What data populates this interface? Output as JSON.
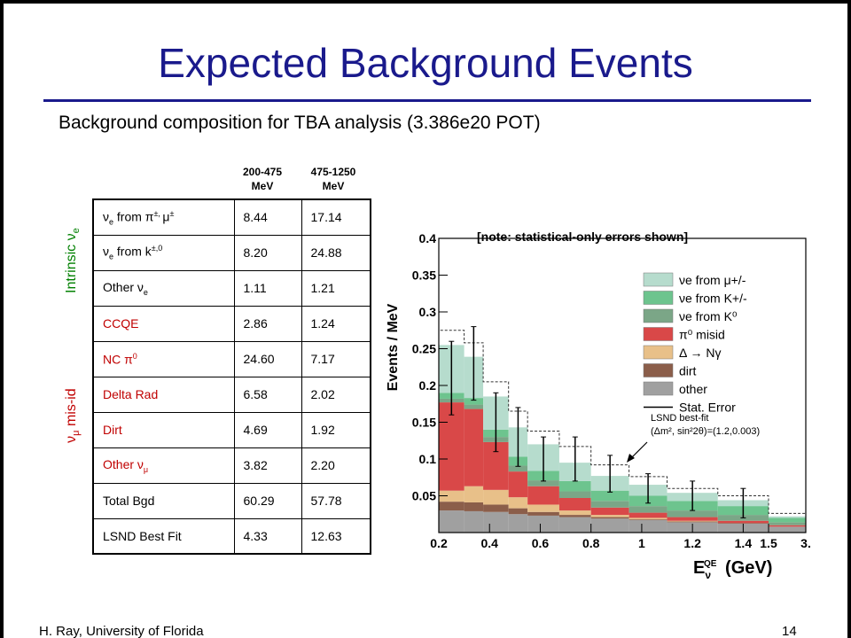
{
  "slide": {
    "title": "Expected Background Events",
    "subtitle": "Background composition for TBA analysis (3.386e20 POT)",
    "footer_left": "H. Ray, University of Florida",
    "page_number": "14"
  },
  "table": {
    "col_headers": [
      "200-475\nMeV",
      "475-1250\nMeV"
    ],
    "group_labels": {
      "intrinsic": "Intrinsic ν",
      "intrinsic_sub": "e",
      "misid": "ν",
      "misid_sub": "μ",
      "misid_rest": " mis-id"
    },
    "rows": [
      {
        "label": "ν",
        "sub": "e",
        "rest": " from π",
        "sup": "±, ",
        "rest2": "μ",
        "sup2": "±",
        "v1": "8.44",
        "v2": "17.14",
        "group": "intrinsic"
      },
      {
        "label": "ν",
        "sub": "e",
        "rest": " from k",
        "sup": "±,0",
        "v1": "8.20",
        "v2": "24.88",
        "group": "intrinsic"
      },
      {
        "label": "Other ν",
        "sub": "e",
        "v1": "1.11",
        "v2": "1.21",
        "group": "intrinsic"
      },
      {
        "label": "CCQE",
        "v1": "2.86",
        "v2": "1.24",
        "group": "misid"
      },
      {
        "label": "NC π",
        "sup": "0",
        "v1": "24.60",
        "v2": "7.17",
        "group": "misid"
      },
      {
        "label": "Delta Rad",
        "v1": "6.58",
        "v2": "2.02",
        "group": "misid"
      },
      {
        "label": "Dirt",
        "v1": "4.69",
        "v2": "1.92",
        "group": "misid"
      },
      {
        "label": "Other ν",
        "sub": "μ",
        "v1": "3.82",
        "v2": "2.20",
        "group": "misid"
      },
      {
        "label": "Total Bgd",
        "v1": "60.29",
        "v2": "57.78",
        "group": "total"
      },
      {
        "label": "LSND Best Fit",
        "v1": "4.33",
        "v2": "12.63",
        "group": "total"
      }
    ]
  },
  "colors": {
    "title": "#1a1a8c",
    "intrinsic": "#008000",
    "misid": "#c00000"
  },
  "note": "[note: statistical-only errors shown]",
  "chart_data": {
    "type": "bar",
    "stacked": true,
    "ylabel": "Events / MeV",
    "xlabel": "E_ν^QE (GeV)",
    "xlim": [
      0.2,
      3.0
    ],
    "ylim": [
      0,
      0.4
    ],
    "x_ticks": [
      "0.2",
      "0.4",
      "0.6",
      "0.8",
      "1",
      "1.2",
      "1.4",
      "1.5",
      "3."
    ],
    "y_ticks": [
      "0.05",
      "0.1",
      "0.15",
      "0.2",
      "0.25",
      "0.3",
      "0.35",
      "0.4"
    ],
    "bin_edges": [
      0.2,
      0.3,
      0.375,
      0.475,
      0.55,
      0.675,
      0.8,
      0.95,
      1.1,
      1.3,
      1.5,
      3.0
    ],
    "series": [
      {
        "name": "other",
        "color": "#a0a0a0",
        "values": [
          0.03,
          0.029,
          0.028,
          0.025,
          0.023,
          0.021,
          0.019,
          0.017,
          0.014,
          0.012,
          0.008
        ]
      },
      {
        "name": "dirt",
        "color": "#8b5e4a",
        "values": [
          0.012,
          0.012,
          0.01,
          0.008,
          0.005,
          0.003,
          0.002,
          0.001,
          0.001,
          0.001,
          0.0
        ]
      },
      {
        "name": "Δ → Nγ",
        "color": "#e8c089",
        "values": [
          0.015,
          0.022,
          0.02,
          0.015,
          0.01,
          0.006,
          0.003,
          0.002,
          0.001,
          0.0,
          0.0
        ]
      },
      {
        "name": "π⁰ misid",
        "color": "#d94848",
        "values": [
          0.12,
          0.105,
          0.065,
          0.035,
          0.025,
          0.017,
          0.01,
          0.007,
          0.005,
          0.003,
          0.002
        ]
      },
      {
        "name": "νe from K⁰",
        "color": "#7ba687",
        "values": [
          0.005,
          0.006,
          0.007,
          0.008,
          0.008,
          0.009,
          0.009,
          0.009,
          0.009,
          0.008,
          0.004
        ]
      },
      {
        "name": "νe from K+/-",
        "color": "#6dc48e",
        "values": [
          0.008,
          0.009,
          0.01,
          0.012,
          0.013,
          0.014,
          0.014,
          0.014,
          0.013,
          0.012,
          0.006
        ]
      },
      {
        "name": "νe from μ+/-",
        "color": "#b6dccd",
        "values": [
          0.065,
          0.056,
          0.045,
          0.04,
          0.036,
          0.025,
          0.02,
          0.015,
          0.011,
          0.008,
          0.002
        ]
      }
    ],
    "total_with_signal": [
      0.275,
      0.258,
      0.205,
      0.165,
      0.138,
      0.117,
      0.092,
      0.076,
      0.06,
      0.05,
      0.026
    ],
    "data_points": {
      "x": [
        0.25,
        0.3375,
        0.425,
        0.5125,
        0.6125,
        0.7375,
        0.875,
        1.025,
        1.2,
        1.4
      ],
      "y": [
        0.21,
        0.23,
        0.15,
        0.13,
        0.1,
        0.1,
        0.08,
        0.06,
        0.05,
        0.04
      ],
      "err": [
        0.05,
        0.05,
        0.04,
        0.04,
        0.03,
        0.03,
        0.025,
        0.02,
        0.02,
        0.02
      ]
    },
    "legend": {
      "placement": "top-right",
      "entries": [
        "νe from μ+/-",
        "νe from K+/-",
        "νe from K⁰",
        "π⁰ misid",
        "Δ → Nγ",
        "dirt",
        "other",
        "Stat. Error"
      ]
    },
    "annotation": {
      "line1": "LSND best-fit",
      "line2": "(Δm², sin²2θ)=(1.2,0.003)"
    }
  }
}
